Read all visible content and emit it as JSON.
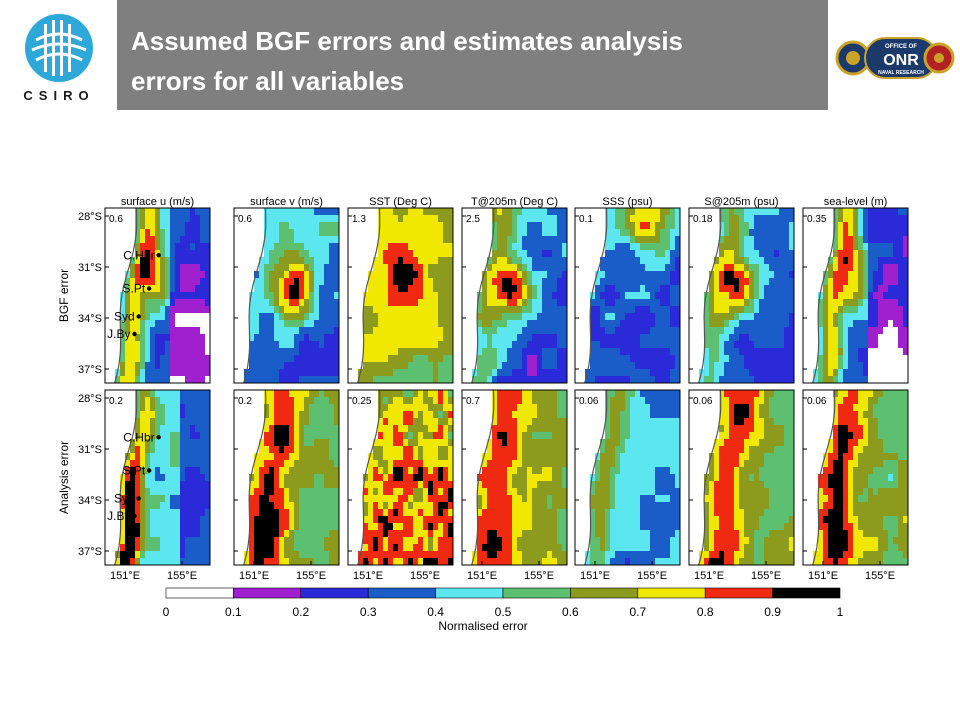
{
  "slide": {
    "title_line1": "Assumed BGF errors and estimates analysis",
    "title_line2": "errors for all variables",
    "logo_left_text": "CSIRO",
    "logo_right_text_top": "OFFICE OF",
    "logo_right_text_main": "ONR",
    "logo_right_text_bottom": "NAVAL RESEARCH",
    "title_bar_color": "#7f7f7f",
    "logo_left_color": "#2ea8d8"
  },
  "chart_data": {
    "type": "heatmap",
    "panels": [
      "surface u (m/s)",
      "surface v (m/s)",
      "SST (Deg C)",
      "T@205m (Deg C)",
      "SSS (psu)",
      "S@205m (psu)",
      "sea-level (m)"
    ],
    "rows": [
      "BGF error",
      "Analysis error"
    ],
    "scale_max": {
      "BGF error": [
        "0.6",
        "0.6",
        "1.3",
        "2.5",
        "0.1",
        "0.18",
        "0.35"
      ],
      "Analysis error": [
        "0.2",
        "0.2",
        "0.25",
        "0.7",
        "0.06",
        "0.06",
        "0.06"
      ]
    },
    "y_ticks": [
      "28°S",
      "31°S",
      "34°S",
      "37°S"
    ],
    "x_ticks": [
      "151°E",
      "155°E"
    ],
    "locations": [
      "C.Hbr",
      "S.Pt",
      "Syd",
      "J.By"
    ],
    "colorbar": {
      "label": "Normalised error",
      "ticks": [
        "0",
        "0.1",
        "0.2",
        "0.3",
        "0.4",
        "0.5",
        "0.6",
        "0.7",
        "0.8",
        "0.9",
        "1"
      ],
      "colors": [
        "#ffffff",
        "#a020d0",
        "#2a2ad8",
        "#1a5cc8",
        "#5ce6f0",
        "#5cc070",
        "#8c9a1e",
        "#f0e800",
        "#f02a10",
        "#000000"
      ]
    }
  }
}
